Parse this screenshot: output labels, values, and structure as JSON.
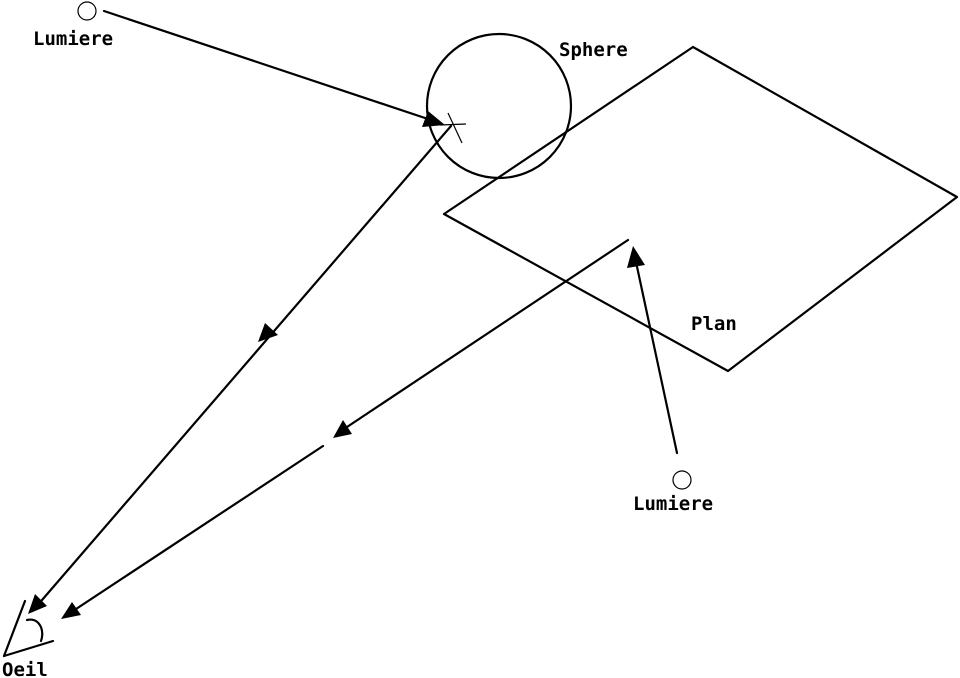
{
  "labels": {
    "light_top": "Lumiere",
    "sphere": "Sphere",
    "plane": "Plan",
    "light_bottom": "Lumiere",
    "eye": "Oeil"
  },
  "colors": {
    "ink": "#000000",
    "background": "#ffffff"
  }
}
